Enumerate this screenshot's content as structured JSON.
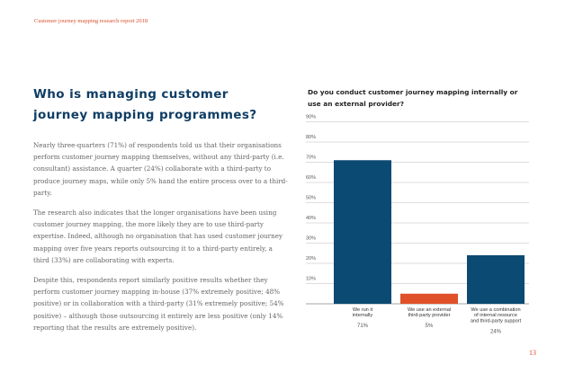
{
  "header": {
    "running_title": "Customer journey mapping research report 2018"
  },
  "section": {
    "title": "Who is managing customer journey mapping programmes?",
    "paragraphs": [
      "Nearly three-quarters (71%) of respondents told us that their organisations perform customer journey mapping themselves, without any third-party (i.e. consultant) assistance. A quarter (24%) collaborate with a third-party to produce journey maps, while only 5% hand the entire process over to a third-party.",
      "The research also indicates that the longer organisations have been using customer journey mapping, the more likely they are to use third-party expertise. Indeed, although no organisation that has used customer journey mapping over five years reports outsourcing it to a third-party entirely, a third (33%) are collaborating with experts.",
      "Despite this, respondents report similarly positive results whether they perform customer journey mapping in-house (37% extremely positive; 48% positive) or in collaboration with a third-party (31% extremely positive; 54% positive) – although those outsourcing it entirely are less positive (only 14% reporting that the results are extremely positive)."
    ]
  },
  "chart_data": {
    "type": "bar",
    "title": "Do you conduct customer journey mapping internally or use an external provider?",
    "categories": [
      [
        "We run it",
        "internally"
      ],
      [
        "We use an external",
        "third-party provider"
      ],
      [
        "We use a combination",
        "of internal resource",
        "and third-party support"
      ]
    ],
    "values": [
      71,
      5,
      24
    ],
    "value_labels": [
      "71%",
      "5%",
      "24%"
    ],
    "y_ticks": [
      "10%",
      "20%",
      "30%",
      "40%",
      "50%",
      "60%",
      "70%",
      "80%",
      "90%"
    ],
    "ylim": [
      0,
      90
    ],
    "grid": true,
    "colors": [
      "#0b4a72",
      "#e0512a",
      "#0b4a72"
    ],
    "grid_color": "#bbbbbb"
  },
  "footer": {
    "page_number": "13"
  }
}
